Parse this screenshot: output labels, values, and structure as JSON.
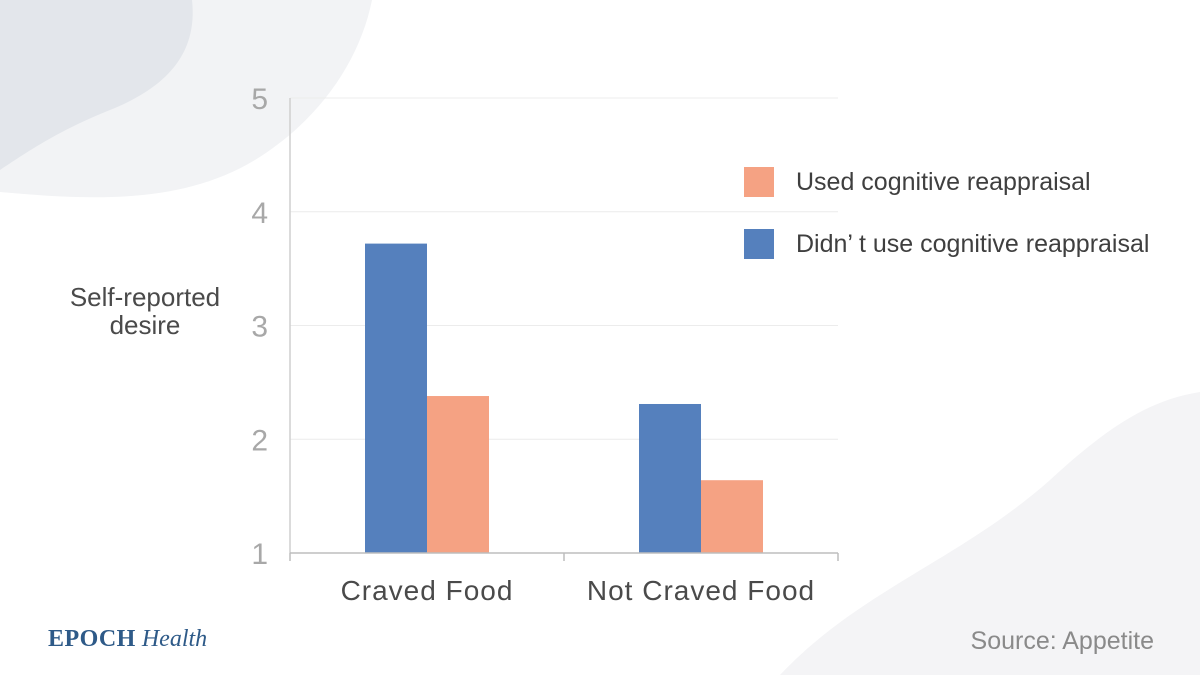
{
  "chart_data": {
    "type": "bar",
    "ylabel": "Self-reported desire",
    "ylim": [
      1,
      5
    ],
    "yticks": [
      "1",
      "2",
      "3",
      "4",
      "5"
    ],
    "categories": [
      "Craved Food",
      "Not Craved Food"
    ],
    "series": [
      {
        "name": "Didn’ t use cognitive reappraisal",
        "color": "#5580bd",
        "values": [
          3.72,
          2.31
        ]
      },
      {
        "name": "Used cognitive reappraisal",
        "color": "#f5a283",
        "values": [
          2.38,
          1.64
        ]
      }
    ],
    "legend": {
      "placement": "top-right",
      "entries": [
        {
          "label": "Used cognitive reappraisal",
          "color": "#f5a283"
        },
        {
          "label": "Didn’ t use cognitive reappraisal",
          "color": "#5580bd"
        }
      ]
    },
    "grid": true
  },
  "branding": {
    "word1": "EPOCH",
    "word2": "Health"
  },
  "source": "Source: Appetite"
}
